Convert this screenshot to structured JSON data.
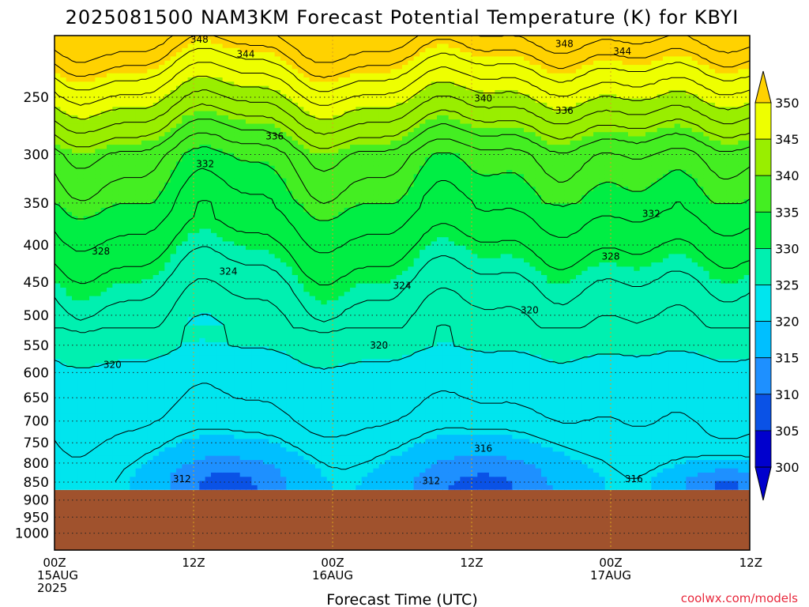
{
  "chart_data": {
    "type": "heatmap",
    "title": "2025081500 NAM3KM Forecast Potential Temperature (K) for KBYI",
    "xlabel": "Forecast Time (UTC)",
    "ylabel": "",
    "x_ticks": [
      {
        "hour": 0,
        "lines": [
          "00Z",
          "15AUG",
          "2025"
        ]
      },
      {
        "hour": 12,
        "lines": [
          "12Z"
        ]
      },
      {
        "hour": 24,
        "lines": [
          "00Z",
          "16AUG"
        ]
      },
      {
        "hour": 36,
        "lines": [
          "12Z"
        ]
      },
      {
        "hour": 48,
        "lines": [
          "00Z",
          "17AUG"
        ]
      },
      {
        "hour": 60,
        "lines": [
          "12Z"
        ]
      }
    ],
    "xlim": [
      0,
      60
    ],
    "y_ticks": [
      250,
      300,
      350,
      400,
      450,
      500,
      550,
      600,
      650,
      700,
      750,
      800,
      850,
      900,
      950,
      1000
    ],
    "ylim": [
      200,
      1000
    ],
    "y_scale": "log-pressure (inverted)",
    "terrain_top_hpa": 865,
    "colorbar": {
      "ticks": [
        300,
        305,
        310,
        315,
        320,
        325,
        330,
        335,
        340,
        345,
        350
      ],
      "colors": [
        "#0000cd",
        "#0a52e6",
        "#1e90ff",
        "#00bfff",
        "#00e5ee",
        "#00f0b0",
        "#00ee44",
        "#44ee22",
        "#99ee00",
        "#eeff00",
        "#ffd200"
      ],
      "extend": "both"
    },
    "contour_labels": [
      {
        "value": "348",
        "hour": 12.5,
        "hpa": 208
      },
      {
        "value": "344",
        "hour": 16.5,
        "hpa": 218
      },
      {
        "value": "348",
        "hour": 44,
        "hpa": 211
      },
      {
        "value": "344",
        "hour": 49,
        "hpa": 216
      },
      {
        "value": "340",
        "hour": 37,
        "hpa": 251
      },
      {
        "value": "336",
        "hour": 19,
        "hpa": 283
      },
      {
        "value": "336",
        "hour": 44,
        "hpa": 261
      },
      {
        "value": "332",
        "hour": 13,
        "hpa": 309
      },
      {
        "value": "332",
        "hour": 51.5,
        "hpa": 362
      },
      {
        "value": "328",
        "hour": 4,
        "hpa": 408
      },
      {
        "value": "328",
        "hour": 48,
        "hpa": 415
      },
      {
        "value": "324",
        "hour": 15,
        "hpa": 435
      },
      {
        "value": "324",
        "hour": 30,
        "hpa": 455
      },
      {
        "value": "320",
        "hour": 41,
        "hpa": 492
      },
      {
        "value": "320",
        "hour": 28,
        "hpa": 550
      },
      {
        "value": "320",
        "hour": 5,
        "hpa": 585
      },
      {
        "value": "316",
        "hour": 37,
        "hpa": 764
      },
      {
        "value": "316",
        "hour": 50,
        "hpa": 841
      },
      {
        "value": "312",
        "hour": 11,
        "hpa": 842
      },
      {
        "value": "312",
        "hour": 32.5,
        "hpa": 847
      }
    ],
    "credit": "coolwx.com/models"
  },
  "colors": {
    "terrain": "#a0522d",
    "background": "#ffffff"
  }
}
